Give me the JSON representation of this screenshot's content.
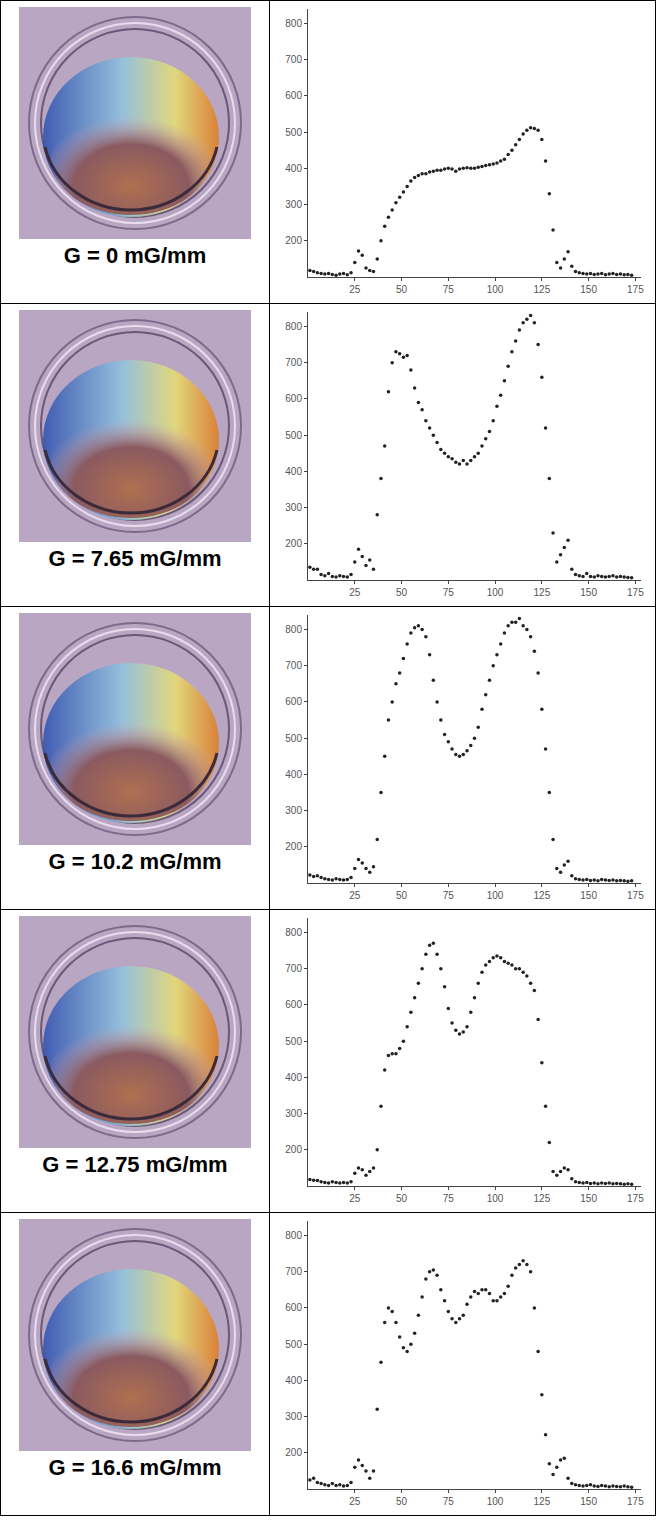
{
  "chart_data": [
    {
      "type": "scatter",
      "title": "G = 0 mG/mm",
      "color": "#222222",
      "marker": "circle",
      "grid": false,
      "xlim": [
        0,
        178
      ],
      "ylim": [
        100,
        840
      ],
      "xticks": [
        25,
        50,
        75,
        100,
        125,
        150,
        175
      ],
      "yticks": [
        200,
        300,
        400,
        500,
        600,
        700,
        800
      ],
      "x": [
        1,
        3,
        5,
        7,
        9,
        11,
        13,
        15,
        17,
        19,
        21,
        23,
        25,
        27,
        29,
        31,
        33,
        35,
        37,
        39,
        41,
        43,
        45,
        47,
        49,
        51,
        53,
        55,
        57,
        59,
        61,
        63,
        65,
        67,
        69,
        71,
        73,
        75,
        77,
        79,
        81,
        83,
        85,
        87,
        89,
        91,
        93,
        95,
        97,
        99,
        101,
        103,
        105,
        107,
        109,
        111,
        113,
        115,
        117,
        119,
        121,
        123,
        125,
        127,
        129,
        131,
        133,
        135,
        137,
        139,
        141,
        143,
        145,
        147,
        149,
        151,
        153,
        155,
        157,
        159,
        161,
        163,
        165,
        167,
        169,
        171,
        173
      ],
      "values": [
        118,
        115,
        112,
        110,
        108,
        110,
        107,
        105,
        108,
        110,
        106,
        112,
        140,
        172,
        160,
        125,
        118,
        115,
        150,
        200,
        240,
        265,
        285,
        305,
        320,
        335,
        350,
        365,
        375,
        380,
        385,
        385,
        390,
        392,
        395,
        395,
        398,
        400,
        398,
        392,
        398,
        400,
        402,
        400,
        400,
        403,
        405,
        408,
        410,
        412,
        415,
        420,
        425,
        438,
        450,
        465,
        480,
        495,
        505,
        512,
        510,
        505,
        480,
        420,
        330,
        230,
        140,
        125,
        150,
        170,
        130,
        115,
        112,
        110,
        108,
        110,
        107,
        108,
        110,
        106,
        108,
        110,
        107,
        108,
        106,
        107,
        105
      ]
    },
    {
      "type": "scatter",
      "title": "G = 7.65 mG/mm",
      "color": "#222222",
      "marker": "circle",
      "grid": false,
      "xlim": [
        0,
        178
      ],
      "ylim": [
        100,
        840
      ],
      "xticks": [
        25,
        50,
        75,
        100,
        125,
        150,
        175
      ],
      "yticks": [
        200,
        300,
        400,
        500,
        600,
        700,
        800
      ],
      "x": [
        1,
        3,
        5,
        7,
        9,
        11,
        13,
        15,
        17,
        19,
        21,
        23,
        25,
        27,
        29,
        31,
        33,
        35,
        37,
        39,
        41,
        43,
        45,
        47,
        49,
        51,
        53,
        55,
        57,
        59,
        61,
        63,
        65,
        67,
        69,
        71,
        73,
        75,
        77,
        79,
        81,
        83,
        85,
        87,
        89,
        91,
        93,
        95,
        97,
        99,
        101,
        103,
        105,
        107,
        109,
        111,
        113,
        115,
        117,
        119,
        121,
        123,
        125,
        127,
        129,
        131,
        133,
        135,
        137,
        139,
        141,
        143,
        145,
        147,
        149,
        151,
        153,
        155,
        157,
        159,
        161,
        163,
        165,
        167,
        169,
        171,
        173
      ],
      "values": [
        135,
        130,
        130,
        115,
        112,
        118,
        110,
        108,
        112,
        110,
        108,
        115,
        150,
        185,
        165,
        140,
        155,
        130,
        280,
        380,
        470,
        620,
        700,
        730,
        725,
        715,
        720,
        680,
        630,
        590,
        570,
        540,
        520,
        500,
        480,
        460,
        450,
        440,
        435,
        425,
        420,
        430,
        420,
        430,
        440,
        450,
        470,
        490,
        510,
        540,
        580,
        610,
        650,
        690,
        730,
        760,
        790,
        810,
        820,
        830,
        810,
        750,
        660,
        520,
        380,
        230,
        150,
        170,
        190,
        210,
        130,
        115,
        112,
        110,
        118,
        110,
        108,
        112,
        110,
        108,
        110,
        112,
        108,
        110,
        108,
        107,
        106
      ]
    },
    {
      "type": "scatter",
      "title": "G = 10.2 mG/mm",
      "color": "#222222",
      "marker": "circle",
      "grid": false,
      "xlim": [
        0,
        178
      ],
      "ylim": [
        100,
        840
      ],
      "xticks": [
        25,
        50,
        75,
        100,
        125,
        150,
        175
      ],
      "yticks": [
        200,
        300,
        400,
        500,
        600,
        700,
        800
      ],
      "x": [
        1,
        3,
        5,
        7,
        9,
        11,
        13,
        15,
        17,
        19,
        21,
        23,
        25,
        27,
        29,
        31,
        33,
        35,
        37,
        39,
        41,
        43,
        45,
        47,
        49,
        51,
        53,
        55,
        57,
        59,
        61,
        63,
        65,
        67,
        69,
        71,
        73,
        75,
        77,
        79,
        81,
        83,
        85,
        87,
        89,
        91,
        93,
        95,
        97,
        99,
        101,
        103,
        105,
        107,
        109,
        111,
        113,
        115,
        117,
        119,
        121,
        123,
        125,
        127,
        129,
        131,
        133,
        135,
        137,
        139,
        141,
        143,
        145,
        147,
        149,
        151,
        153,
        155,
        157,
        159,
        161,
        163,
        165,
        167,
        169,
        171,
        173
      ],
      "values": [
        122,
        118,
        120,
        115,
        112,
        110,
        108,
        112,
        110,
        108,
        110,
        115,
        140,
        165,
        155,
        140,
        130,
        145,
        220,
        350,
        450,
        550,
        600,
        650,
        680,
        720,
        760,
        790,
        805,
        810,
        800,
        780,
        730,
        660,
        600,
        550,
        510,
        490,
        470,
        455,
        450,
        455,
        465,
        480,
        500,
        530,
        580,
        620,
        660,
        700,
        730,
        760,
        790,
        810,
        820,
        820,
        830,
        810,
        800,
        780,
        740,
        680,
        580,
        470,
        350,
        220,
        140,
        130,
        150,
        160,
        120,
        112,
        110,
        108,
        110,
        107,
        108,
        106,
        110,
        108,
        107,
        108,
        106,
        107,
        106,
        105,
        106
      ]
    },
    {
      "type": "scatter",
      "title": "G = 12.75 mG/mm",
      "color": "#222222",
      "marker": "circle",
      "grid": false,
      "xlim": [
        0,
        178
      ],
      "ylim": [
        100,
        840
      ],
      "xticks": [
        25,
        50,
        75,
        100,
        125,
        150,
        175
      ],
      "yticks": [
        200,
        300,
        400,
        500,
        600,
        700,
        800
      ],
      "x": [
        1,
        3,
        5,
        7,
        9,
        11,
        13,
        15,
        17,
        19,
        21,
        23,
        25,
        27,
        29,
        31,
        33,
        35,
        37,
        39,
        41,
        43,
        45,
        47,
        49,
        51,
        53,
        55,
        57,
        59,
        61,
        63,
        65,
        67,
        69,
        71,
        73,
        75,
        77,
        79,
        81,
        83,
        85,
        87,
        89,
        91,
        93,
        95,
        97,
        99,
        101,
        103,
        105,
        107,
        109,
        111,
        113,
        115,
        117,
        119,
        121,
        123,
        125,
        127,
        129,
        131,
        133,
        135,
        137,
        139,
        141,
        143,
        145,
        147,
        149,
        151,
        153,
        155,
        157,
        159,
        161,
        163,
        165,
        167,
        169,
        171,
        173
      ],
      "values": [
        118,
        116,
        115,
        112,
        110,
        108,
        112,
        110,
        108,
        110,
        108,
        112,
        135,
        150,
        145,
        130,
        140,
        150,
        200,
        320,
        420,
        460,
        465,
        465,
        480,
        500,
        540,
        580,
        620,
        660,
        700,
        740,
        765,
        770,
        740,
        700,
        650,
        590,
        550,
        530,
        520,
        525,
        540,
        580,
        620,
        660,
        690,
        710,
        720,
        730,
        735,
        730,
        720,
        715,
        710,
        700,
        700,
        690,
        680,
        660,
        640,
        560,
        440,
        320,
        220,
        140,
        130,
        140,
        150,
        145,
        120,
        112,
        110,
        108,
        110,
        107,
        108,
        106,
        108,
        107,
        108,
        106,
        107,
        106,
        105,
        106,
        105
      ]
    },
    {
      "type": "scatter",
      "title": "G = 16.6 mG/mm",
      "color": "#222222",
      "marker": "circle",
      "grid": false,
      "xlim": [
        0,
        178
      ],
      "ylim": [
        100,
        840
      ],
      "xticks": [
        25,
        50,
        75,
        100,
        125,
        150,
        175
      ],
      "yticks": [
        200,
        300,
        400,
        500,
        600,
        700,
        800
      ],
      "x": [
        1,
        3,
        5,
        7,
        9,
        11,
        13,
        15,
        17,
        19,
        21,
        23,
        25,
        27,
        29,
        31,
        33,
        35,
        37,
        39,
        41,
        43,
        45,
        47,
        49,
        51,
        53,
        55,
        57,
        59,
        61,
        63,
        65,
        67,
        69,
        71,
        73,
        75,
        77,
        79,
        81,
        83,
        85,
        87,
        89,
        91,
        93,
        95,
        97,
        99,
        101,
        103,
        105,
        107,
        109,
        111,
        113,
        115,
        117,
        119,
        121,
        123,
        125,
        127,
        129,
        131,
        133,
        135,
        137,
        139,
        141,
        143,
        145,
        147,
        149,
        151,
        153,
        155,
        157,
        159,
        161,
        163,
        165,
        167,
        169,
        171,
        173
      ],
      "values": [
        125,
        130,
        118,
        115,
        112,
        110,
        115,
        110,
        112,
        108,
        110,
        118,
        160,
        180,
        165,
        150,
        130,
        150,
        320,
        450,
        560,
        600,
        590,
        560,
        520,
        490,
        480,
        500,
        530,
        580,
        630,
        680,
        700,
        705,
        690,
        650,
        620,
        590,
        570,
        560,
        570,
        580,
        610,
        630,
        645,
        640,
        650,
        650,
        640,
        620,
        620,
        630,
        640,
        660,
        690,
        710,
        720,
        730,
        720,
        700,
        600,
        480,
        360,
        250,
        170,
        140,
        160,
        180,
        185,
        130,
        115,
        112,
        110,
        108,
        110,
        112,
        108,
        107,
        110,
        108,
        106,
        108,
        107,
        106,
        108,
        106,
        105
      ]
    }
  ]
}
